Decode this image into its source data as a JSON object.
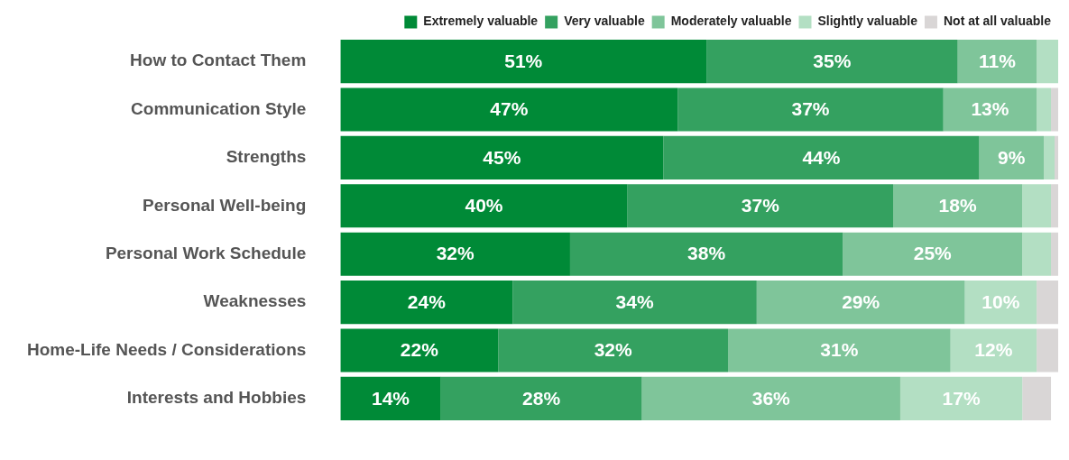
{
  "chart_data": {
    "type": "bar",
    "orientation": "horizontal",
    "stacked": true,
    "legend": "top",
    "categories": [
      "How to Contact Them",
      "Communication Style",
      "Strengths",
      "Personal Well-being",
      "Personal Work Schedule",
      "Weaknesses",
      "Home-Life Needs / Considerations",
      "Interests and Hobbies"
    ],
    "series": [
      {
        "name": "Extremely valuable",
        "color": "#008a37",
        "values": [
          51,
          47,
          45,
          40,
          32,
          24,
          22,
          14
        ],
        "value_labels": [
          "51%",
          "47%",
          "45%",
          "40%",
          "32%",
          "24%",
          "22%",
          "14%"
        ]
      },
      {
        "name": "Very valuable",
        "color": "#34a160",
        "values": [
          35,
          37,
          44,
          37,
          38,
          34,
          32,
          28
        ],
        "value_labels": [
          "35%",
          "37%",
          "44%",
          "37%",
          "38%",
          "34%",
          "32%",
          "28%"
        ]
      },
      {
        "name": "Moderately valuable",
        "color": "#7fc59a",
        "values": [
          11,
          13,
          9,
          18,
          25,
          29,
          31,
          36
        ],
        "value_labels": [
          "11%",
          "13%",
          "9%",
          "18%",
          "25%",
          "29%",
          "31%",
          "36%"
        ]
      },
      {
        "name": "Slightly valuable",
        "color": "#b3dfc3",
        "values": [
          3,
          2,
          1.5,
          4,
          4,
          10,
          12,
          17
        ],
        "value_labels": [
          null,
          null,
          null,
          null,
          null,
          "10%",
          "12%",
          "17%"
        ]
      },
      {
        "name": "Not at all valuable",
        "color": "#d9d6d6",
        "values": [
          0,
          1,
          0.5,
          1,
          1,
          3,
          3,
          4
        ],
        "value_labels": [
          null,
          null,
          null,
          null,
          null,
          null,
          null,
          null
        ]
      }
    ]
  }
}
